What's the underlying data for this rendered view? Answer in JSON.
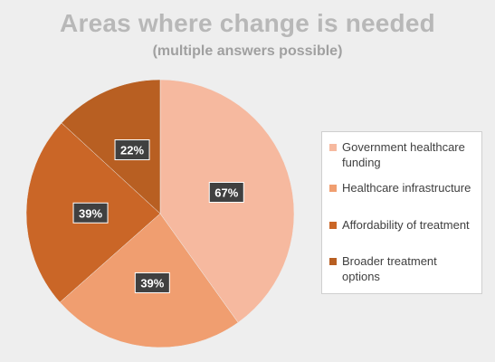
{
  "chart_data": {
    "type": "pie",
    "title": "Areas where change is needed",
    "subtitle": "(multiple answers possible)",
    "legend_position": "right",
    "slices": [
      {
        "label": "Government healthcare funding",
        "value": 67,
        "display": "67%",
        "color": "#f6b99f"
      },
      {
        "label": "Healthcare infrastructure",
        "value": 39,
        "display": "39%",
        "color": "#f09e70"
      },
      {
        "label": "Affordability of treatment",
        "value": 39,
        "display": "39%",
        "color": "#ca6627"
      },
      {
        "label": "Broader treatment options",
        "value": 22,
        "display": "22%",
        "color": "#b85f22"
      }
    ]
  }
}
